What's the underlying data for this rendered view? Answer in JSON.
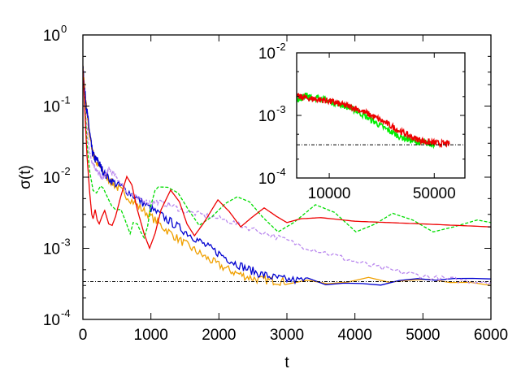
{
  "chart_data": [
    {
      "id": "main",
      "type": "line",
      "xlabel": "t",
      "ylabel": "σ(t)",
      "xscale": "linear",
      "yscale": "log",
      "xlim": [
        0,
        6000
      ],
      "ylim": [
        0.0001,
        1
      ],
      "xticks": [
        {
          "value": 0,
          "label": "0"
        },
        {
          "value": 1000,
          "label": "1000"
        },
        {
          "value": 2000,
          "label": "2000"
        },
        {
          "value": 3000,
          "label": "3000"
        },
        {
          "value": 4000,
          "label": "4000"
        },
        {
          "value": 5000,
          "label": "5000"
        },
        {
          "value": 6000,
          "label": "6000"
        }
      ],
      "yticks": [
        {
          "value": 1,
          "base": "10",
          "exp": "0"
        },
        {
          "value": 0.1,
          "base": "10",
          "exp": "-1"
        },
        {
          "value": 0.01,
          "base": "10",
          "exp": "-2"
        },
        {
          "value": 0.001,
          "base": "10",
          "exp": "-3"
        },
        {
          "value": 0.0001,
          "base": "10",
          "exp": "-4"
        }
      ],
      "legend": "none",
      "grid": false,
      "reference_line": {
        "value": 0.00034,
        "color": "#000000",
        "style": "dash-dot"
      },
      "series": [
        {
          "name": "orange",
          "color": "#f0a000",
          "style": "solid",
          "noise": 0.06,
          "points": [
            [
              0,
              0.35
            ],
            [
              20,
              0.2
            ],
            [
              50,
              0.1
            ],
            [
              80,
              0.05
            ],
            [
              120,
              0.03
            ],
            [
              160,
              0.02
            ],
            [
              200,
              0.016
            ],
            [
              260,
              0.0135
            ],
            [
              330,
              0.0105
            ],
            [
              450,
              0.008
            ],
            [
              600,
              0.006
            ],
            [
              800,
              0.004
            ],
            [
              1000,
              0.0028
            ],
            [
              1200,
              0.0019
            ],
            [
              1400,
              0.00135
            ],
            [
              1600,
              0.001
            ],
            [
              1800,
              0.00075
            ],
            [
              2000,
              0.00058
            ],
            [
              2200,
              0.00047
            ],
            [
              2400,
              0.0004
            ],
            [
              2600,
              0.00036
            ],
            [
              2800,
              0.00035
            ],
            [
              3000,
              0.00034
            ],
            [
              6000,
              0.00034
            ]
          ]
        },
        {
          "name": "blue",
          "color": "#0000d0",
          "style": "solid",
          "noise": 0.06,
          "points": [
            [
              0,
              0.35
            ],
            [
              20,
              0.2
            ],
            [
              50,
              0.1
            ],
            [
              80,
              0.06
            ],
            [
              110,
              0.035
            ],
            [
              140,
              0.022
            ],
            [
              180,
              0.018
            ],
            [
              220,
              0.017
            ],
            [
              260,
              0.014
            ],
            [
              320,
              0.011
            ],
            [
              450,
              0.0085
            ],
            [
              600,
              0.007
            ],
            [
              800,
              0.005
            ],
            [
              1000,
              0.0036
            ],
            [
              1200,
              0.0027
            ],
            [
              1400,
              0.002
            ],
            [
              1600,
              0.0015
            ],
            [
              1800,
              0.0011
            ],
            [
              2000,
              0.00085
            ],
            [
              2200,
              0.00065
            ],
            [
              2400,
              0.00052
            ],
            [
              2600,
              0.00044
            ],
            [
              2800,
              0.00039
            ],
            [
              3000,
              0.00036
            ],
            [
              3300,
              0.00035
            ],
            [
              6000,
              0.00034
            ]
          ]
        },
        {
          "name": "purple",
          "color": "#b987ee",
          "style": "dashed",
          "noise": 0.04,
          "points": [
            [
              0,
              0.3
            ],
            [
              40,
              0.08
            ],
            [
              80,
              0.03
            ],
            [
              120,
              0.018
            ],
            [
              160,
              0.015
            ],
            [
              200,
              0.0125
            ],
            [
              240,
              0.011
            ],
            [
              280,
              0.0095
            ],
            [
              330,
              0.0105
            ],
            [
              380,
              0.013
            ],
            [
              450,
              0.011
            ],
            [
              550,
              0.0085
            ],
            [
              650,
              0.0062
            ],
            [
              800,
              0.005
            ],
            [
              950,
              0.0045
            ],
            [
              1100,
              0.0045
            ],
            [
              1300,
              0.004
            ],
            [
              1500,
              0.0033
            ],
            [
              1800,
              0.0029
            ],
            [
              2100,
              0.0025
            ],
            [
              2400,
              0.002
            ],
            [
              2800,
              0.0015
            ],
            [
              3200,
              0.0011
            ],
            [
              3600,
              0.00085
            ],
            [
              4000,
              0.00065
            ],
            [
              4400,
              0.00052
            ],
            [
              4800,
              0.00044
            ],
            [
              5200,
              0.00038
            ],
            [
              5600,
              0.00035
            ],
            [
              6000,
              0.00034
            ]
          ]
        },
        {
          "name": "green",
          "color": "#00dd00",
          "style": "dashed",
          "noise": 0.0,
          "points": [
            [
              0,
              0.35
            ],
            [
              30,
              0.1
            ],
            [
              60,
              0.03
            ],
            [
              100,
              0.012
            ],
            [
              150,
              0.0065
            ],
            [
              200,
              0.006
            ],
            [
              260,
              0.0075
            ],
            [
              300,
              0.007
            ],
            [
              350,
              0.0055
            ],
            [
              420,
              0.004
            ],
            [
              480,
              0.0035
            ],
            [
              560,
              0.0035
            ],
            [
              620,
              0.0025
            ],
            [
              695,
              0.0016
            ],
            [
              740,
              0.0023
            ],
            [
              800,
              0.0022
            ],
            [
              850,
              0.0017
            ],
            [
              900,
              0.0014
            ],
            [
              950,
              0.002
            ],
            [
              1000,
              0.004
            ],
            [
              1060,
              0.0065
            ],
            [
              1110,
              0.0073
            ],
            [
              1250,
              0.0072
            ],
            [
              1400,
              0.006
            ],
            [
              1550,
              0.0035
            ],
            [
              1710,
              0.0021
            ],
            [
              1900,
              0.0028
            ],
            [
              2100,
              0.0043
            ],
            [
              2270,
              0.0053
            ],
            [
              2450,
              0.0045
            ],
            [
              2650,
              0.0027
            ],
            [
              2870,
              0.0017
            ],
            [
              3100,
              0.0023
            ],
            [
              3420,
              0.0041
            ],
            [
              3700,
              0.0032
            ],
            [
              4015,
              0.0017
            ],
            [
              4300,
              0.0022
            ],
            [
              4555,
              0.0031
            ],
            [
              4850,
              0.0025
            ],
            [
              5150,
              0.0017
            ],
            [
              5450,
              0.002
            ],
            [
              5800,
              0.0025
            ],
            [
              6000,
              0.0023
            ]
          ]
        },
        {
          "name": "red",
          "color": "#ee0000",
          "style": "solid",
          "noise": 0.0,
          "points": [
            [
              0,
              0.35
            ],
            [
              30,
              0.08
            ],
            [
              60,
              0.02
            ],
            [
              100,
              0.006
            ],
            [
              130,
              0.003
            ],
            [
              150,
              0.0026
            ],
            [
              180,
              0.0035
            ],
            [
              210,
              0.0025
            ],
            [
              240,
              0.0022
            ],
            [
              280,
              0.0028
            ],
            [
              320,
              0.0034
            ],
            [
              380,
              0.0022
            ],
            [
              430,
              0.0021
            ],
            [
              480,
              0.0028
            ],
            [
              560,
              0.0055
            ],
            [
              645,
              0.0102
            ],
            [
              720,
              0.0078
            ],
            [
              800,
              0.0035
            ],
            [
              900,
              0.0016
            ],
            [
              980,
              0.001
            ],
            [
              1060,
              0.0016
            ],
            [
              1150,
              0.0035
            ],
            [
              1290,
              0.0066
            ],
            [
              1420,
              0.0045
            ],
            [
              1530,
              0.0022
            ],
            [
              1640,
              0.0015
            ],
            [
              1780,
              0.0023
            ],
            [
              1985,
              0.0048
            ],
            [
              2150,
              0.0033
            ],
            [
              2320,
              0.002
            ],
            [
              2480,
              0.0027
            ],
            [
              2665,
              0.0037
            ],
            [
              2850,
              0.0028
            ],
            [
              3000,
              0.0023
            ],
            [
              3200,
              0.0026
            ],
            [
              3500,
              0.0027
            ],
            [
              4000,
              0.0024
            ],
            [
              4500,
              0.0023
            ],
            [
              5000,
              0.0022
            ],
            [
              5500,
              0.0021
            ],
            [
              6000,
              0.002
            ]
          ]
        }
      ]
    },
    {
      "id": "inset",
      "type": "line",
      "xscale": "log",
      "yscale": "log",
      "xlim": [
        6070,
        80000
      ],
      "ylim": [
        0.0001,
        0.01
      ],
      "xticks": [
        {
          "value": 10000,
          "label": "10000"
        },
        {
          "value": 50000,
          "label": "50000"
        }
      ],
      "yticks": [
        {
          "value": 0.01,
          "base": "10",
          "exp": "-2"
        },
        {
          "value": 0.001,
          "base": "10",
          "exp": "-3"
        },
        {
          "value": 0.0001,
          "base": "10",
          "exp": "-4"
        }
      ],
      "reference_line": {
        "value": 0.00034,
        "color": "#000000",
        "style": "dash-dot"
      },
      "series": [
        {
          "name": "green",
          "color": "#00ee00",
          "style": "solid",
          "noise": 0.05,
          "points": [
            [
              6100,
              0.0018
            ],
            [
              6500,
              0.0019
            ],
            [
              7000,
              0.0021
            ],
            [
              7600,
              0.0019
            ],
            [
              8500,
              0.0019
            ],
            [
              10000,
              0.0017
            ],
            [
              12000,
              0.0015
            ],
            [
              15000,
              0.0012
            ],
            [
              19000,
              0.00085
            ],
            [
              24000,
              0.0006
            ],
            [
              30000,
              0.00045
            ],
            [
              37000,
              0.00038
            ],
            [
              44000,
              0.00036
            ],
            [
              50000,
              0.00035
            ]
          ]
        },
        {
          "name": "red",
          "color": "#ee0000",
          "style": "solid",
          "noise": 0.05,
          "points": [
            [
              6100,
              0.002
            ],
            [
              7000,
              0.0019
            ],
            [
              8500,
              0.0018
            ],
            [
              10000,
              0.0017
            ],
            [
              12000,
              0.0015
            ],
            [
              15000,
              0.0013
            ],
            [
              19000,
              0.001
            ],
            [
              24000,
              0.00075
            ],
            [
              30000,
              0.00055
            ],
            [
              37000,
              0.00043
            ],
            [
              44000,
              0.00038
            ],
            [
              52000,
              0.00036
            ],
            [
              63000,
              0.00035
            ]
          ]
        }
      ]
    }
  ]
}
